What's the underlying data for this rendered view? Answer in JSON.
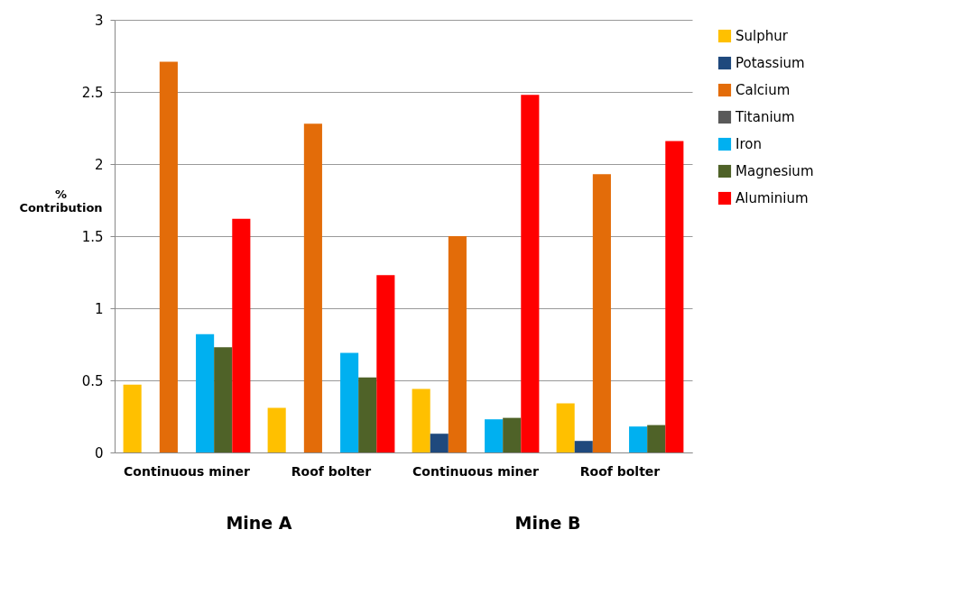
{
  "chart_data": {
    "type": "bar",
    "ylabel": "% Contribution",
    "categories": [
      "Continuous miner",
      "Roof bolter",
      "Continuous miner",
      "Roof bolter"
    ],
    "series": [
      {
        "name": "Sulphur",
        "color": "#ffc000",
        "values": [
          0.47,
          0.31,
          0.44,
          0.34
        ]
      },
      {
        "name": "Potassium",
        "color": "#1f497d",
        "values": [
          0,
          0,
          0.13,
          0.08
        ]
      },
      {
        "name": "Calcium",
        "color": "#e36c09",
        "values": [
          2.71,
          2.28,
          1.5,
          1.93
        ]
      },
      {
        "name": "Titanium",
        "color": "#595959",
        "values": [
          0,
          0,
          0,
          0
        ]
      },
      {
        "name": "Iron",
        "color": "#00b0f0",
        "values": [
          0.82,
          0.69,
          0.23,
          0.18
        ]
      },
      {
        "name": "Magnesium",
        "color": "#4f6228",
        "values": [
          0.73,
          0.52,
          0.24,
          0.19
        ]
      },
      {
        "name": "Aluminium",
        "color": "#ff0000",
        "values": [
          1.62,
          1.23,
          2.48,
          2.16
        ]
      }
    ],
    "ylim": [
      0,
      3
    ],
    "yticks": [
      0,
      0.5,
      1,
      1.5,
      2,
      2.5,
      3
    ],
    "grid": "y",
    "legend": "right",
    "annotations": [
      "Mine A",
      "Mine B"
    ]
  }
}
